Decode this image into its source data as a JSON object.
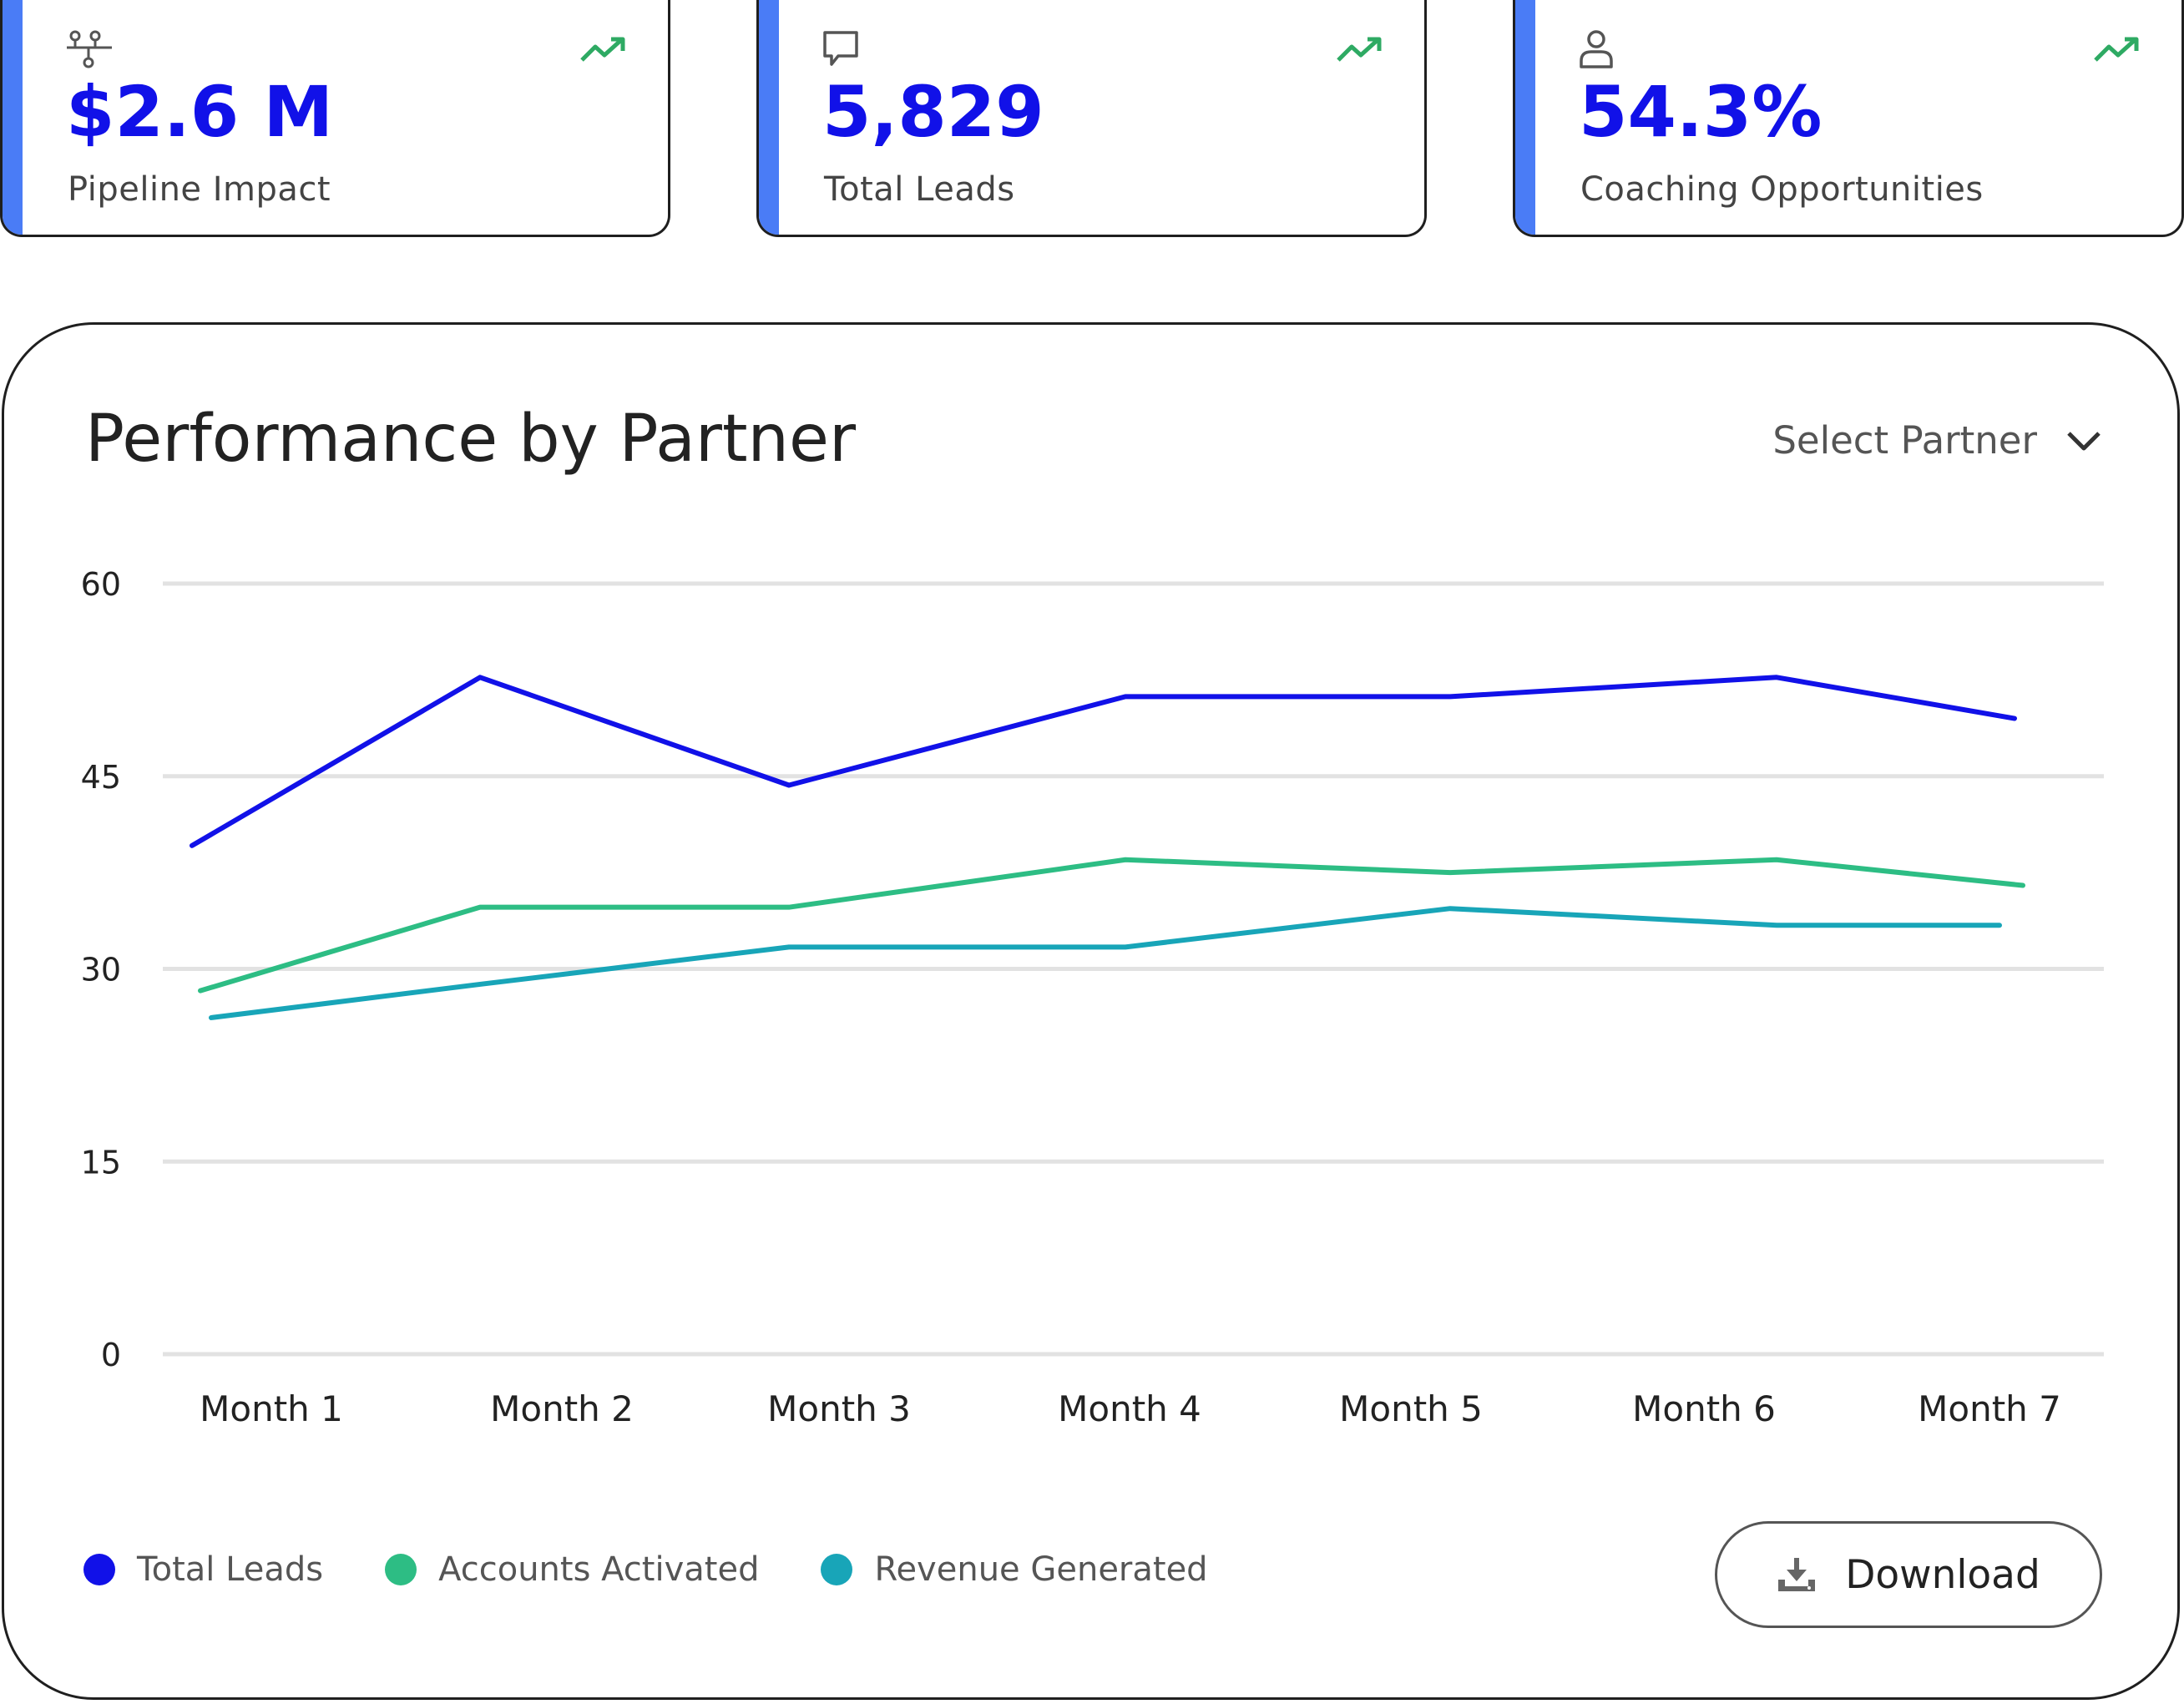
{
  "kpis": [
    {
      "value": "$2.6 M",
      "label": "Pipeline Impact",
      "icon": "network-icon"
    },
    {
      "value": "5,829",
      "label": "Total Leads",
      "icon": "chat-bubble-icon"
    },
    {
      "value": "54.3%",
      "label": "Coaching Opportunities",
      "icon": "user-icon"
    }
  ],
  "panel": {
    "title": "Performance by Partner",
    "select_label": "Select Partner",
    "download_label": "Download"
  },
  "colors": {
    "accent": "#4a7cf6",
    "kpi_value": "#1111e8",
    "trend": "#2eaa63",
    "total_leads": "#1111e8",
    "accounts_activated": "#2dbd84",
    "revenue_generated": "#18a5b8",
    "grid": "#e2e2e2"
  },
  "chart_data": {
    "type": "line",
    "categories": [
      "Month 1",
      "Month 2",
      "Month 3",
      "Month 4",
      "Month 5",
      "Month 6",
      "Month 7"
    ],
    "ylim": [
      0,
      60
    ],
    "yticks": [
      0,
      15,
      30,
      45,
      60
    ],
    "grid": true,
    "legend_position": "bottom-left",
    "series": [
      {
        "name": "Total Leads",
        "values": [
          39.6,
          52.7,
          44.3,
          51.2,
          51.2,
          52.7,
          49.5
        ]
      },
      {
        "name": "Accounts Activated",
        "values": [
          28.3,
          34.8,
          34.8,
          38.5,
          37.5,
          38.5,
          36.5
        ]
      },
      {
        "name": "Revenue Generated",
        "values": [
          26.2,
          28.8,
          31.7,
          31.7,
          34.7,
          33.4,
          33.4
        ]
      }
    ]
  }
}
